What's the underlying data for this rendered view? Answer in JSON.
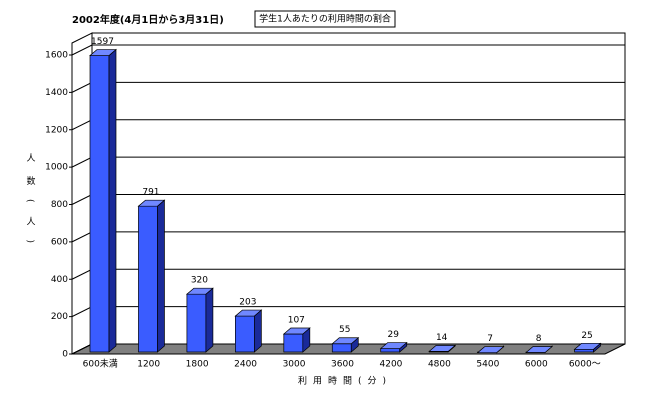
{
  "chart_data": {
    "type": "bar3d",
    "title": "学生1人あたりの利用時間の割合",
    "subtitle": "2002年度(4月1日から3月31日)",
    "x_label": "利用時間(分)",
    "y_label": "人数(人)",
    "categories": [
      "600未満",
      "1200",
      "1800",
      "2400",
      "3000",
      "3600",
      "4200",
      "4800",
      "5400",
      "6000",
      "6000〜"
    ],
    "values": [
      1597,
      791,
      320,
      203,
      107,
      55,
      29,
      14,
      7,
      8,
      25
    ],
    "color": "#3a5cff",
    "ylim": [
      0,
      1600
    ],
    "yticks": [
      0,
      200,
      400,
      600,
      800,
      1000,
      1200,
      1400,
      1600
    ],
    "grid": true
  }
}
